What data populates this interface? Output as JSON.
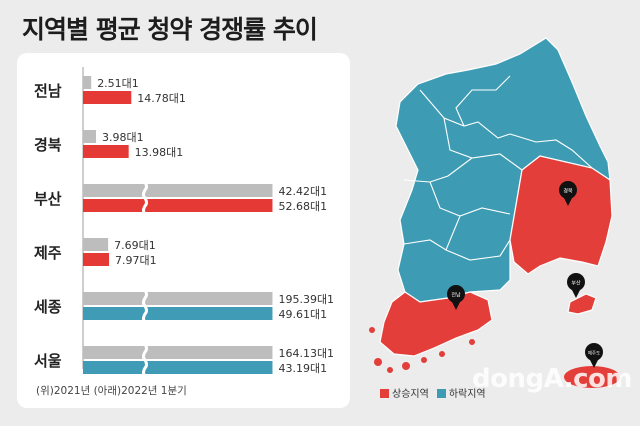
{
  "title": "지역별 평균 청약 경쟁률 추이",
  "colors": {
    "y2021": "#bdbdbd",
    "rising": "#e53935",
    "falling": "#3f9bb6",
    "map_rise": "#e33e3a",
    "map_fall": "#3d9cb4"
  },
  "chart_data": {
    "type": "bar",
    "orientation": "horizontal",
    "categories": [
      "전남",
      "경북",
      "부산",
      "제주",
      "세종",
      "서울"
    ],
    "series": [
      {
        "name": "2021년",
        "values": [
          2.51,
          3.98,
          42.42,
          7.69,
          195.39,
          164.13
        ]
      },
      {
        "name": "2022년 1분기",
        "values": [
          14.78,
          13.98,
          52.68,
          7.97,
          49.61,
          43.19
        ]
      }
    ],
    "labels_2021": [
      "2.51대1",
      "3.98대1",
      "42.42대1",
      "7.69대1",
      "195.39대1",
      "164.13대1"
    ],
    "labels_2022": [
      "14.78대1",
      "13.98대1",
      "52.68대1",
      "7.97대1",
      "49.61대1",
      "43.19대1"
    ],
    "axis_break": [
      "부산",
      "세종",
      "서울"
    ],
    "footnote": "(위)2021년 (아래)2022년 1분기"
  },
  "map": {
    "pins": [
      "경북",
      "부산",
      "전남",
      "제주도"
    ],
    "legend_rise": "상승지역",
    "legend_fall": "하락지역"
  },
  "watermark": "dongA.com"
}
